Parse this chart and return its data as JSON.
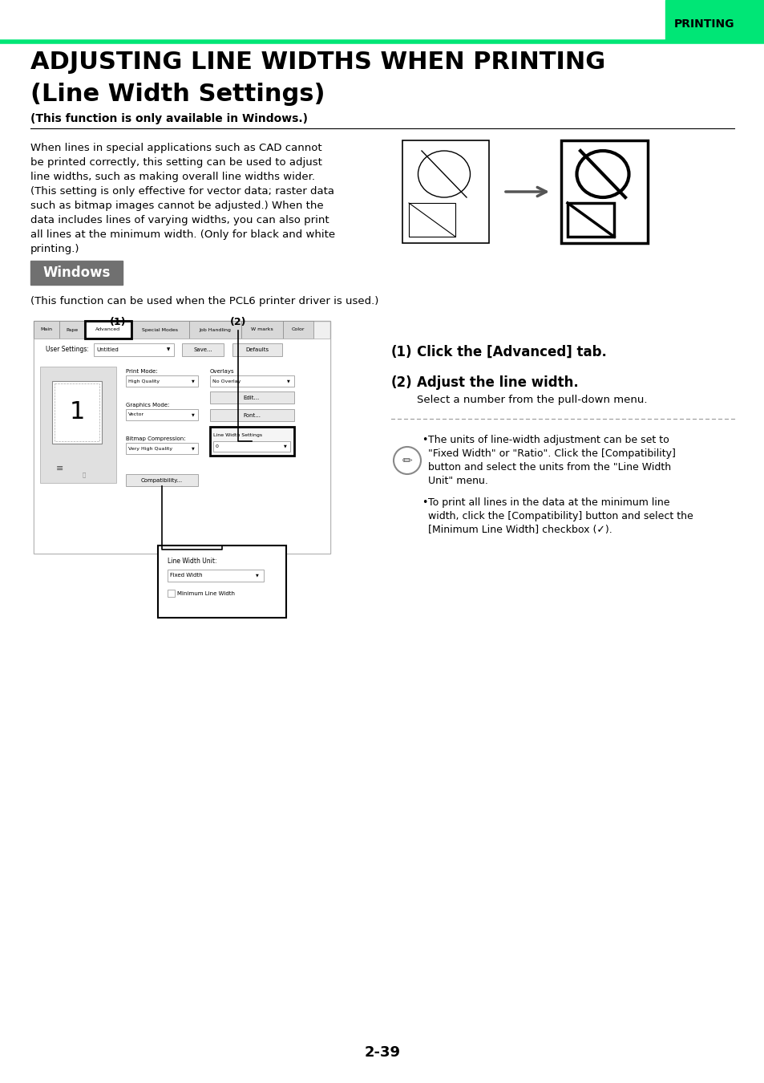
{
  "bg_color": "#ffffff",
  "header_bar_color": "#00e676",
  "header_text": "PRINTING",
  "title_line1": "ADJUSTING LINE WIDTHS WHEN PRINTING",
  "title_line2": "(Line Width Settings)",
  "subtitle": "(This function is only available in Windows.)",
  "body_text_lines": [
    "When lines in special applications such as CAD cannot",
    "be printed correctly, this setting can be used to adjust",
    "line widths, such as making overall line widths wider.",
    "(This setting is only effective for vector data; raster data",
    "such as bitmap images cannot be adjusted.) When the",
    "data includes lines of varying widths, you can also print",
    "all lines at the minimum width. (Only for black and white",
    "printing.)"
  ],
  "windows_label": "Windows",
  "windows_bg": "#707070",
  "windows_text_color": "#ffffff",
  "pcl6_text": "(This function can be used when the PCL6 printer driver is used.)",
  "step1_num": "(1)",
  "step1_text": "Click the [Advanced] tab.",
  "step2_num": "(2)",
  "step2_text": "Adjust the line width.",
  "step2_sub": "Select a number from the pull-down menu.",
  "note1_lines": [
    "The units of line-width adjustment can be set to",
    "\"Fixed Width\" or \"Ratio\". Click the [Compatibility]",
    "button and select the units from the \"Line Width",
    "Unit\" menu."
  ],
  "note2_lines": [
    "To print all lines in the data at the minimum line",
    "width, click the [Compatibility] button and select the",
    "[Minimum Line Width] checkbox (✓)."
  ],
  "page_number": "2-39",
  "dot_line_color": "#999999",
  "header_green": "#00e676"
}
